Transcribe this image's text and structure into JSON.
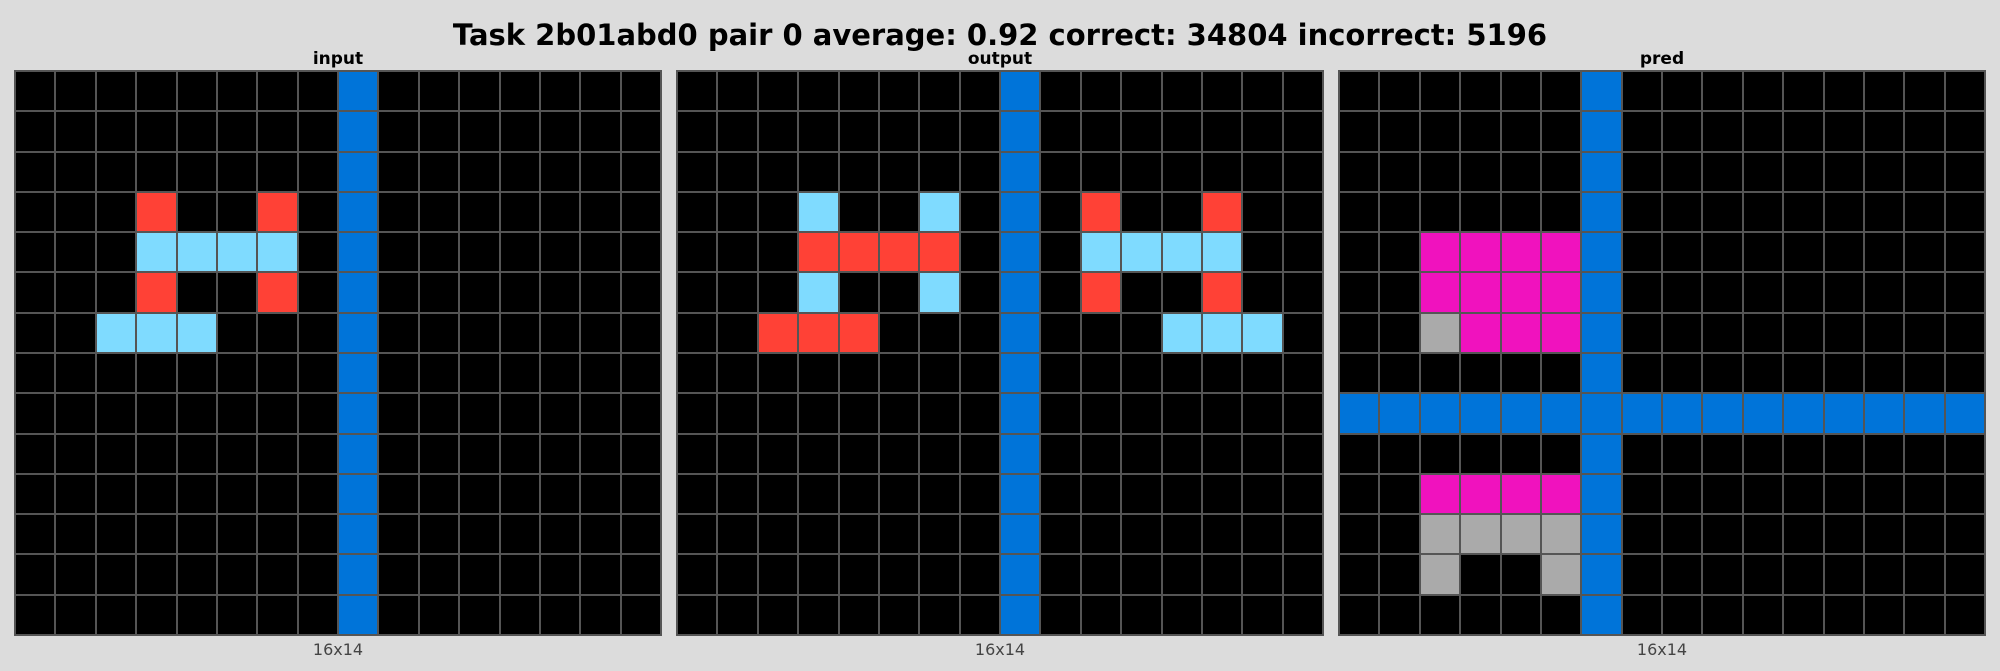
{
  "title": "Task 2b01abd0 pair 0 average: 0.92 correct: 34804 incorrect: 5196",
  "palette": {
    "0": "#000000",
    "1": "#0074d9",
    "2": "#ff4136",
    "5": "#aaaaaa",
    "6": "#f012be",
    "8": "#7fdbff"
  },
  "panels": [
    {
      "id": "input",
      "label": "input",
      "dims": "16x14",
      "rows": [
        [
          0,
          0,
          0,
          0,
          0,
          0,
          0,
          0,
          1,
          0,
          0,
          0,
          0,
          0,
          0,
          0
        ],
        [
          0,
          0,
          0,
          0,
          0,
          0,
          0,
          0,
          1,
          0,
          0,
          0,
          0,
          0,
          0,
          0
        ],
        [
          0,
          0,
          0,
          0,
          0,
          0,
          0,
          0,
          1,
          0,
          0,
          0,
          0,
          0,
          0,
          0
        ],
        [
          0,
          0,
          0,
          2,
          0,
          0,
          2,
          0,
          1,
          0,
          0,
          0,
          0,
          0,
          0,
          0
        ],
        [
          0,
          0,
          0,
          8,
          8,
          8,
          8,
          0,
          1,
          0,
          0,
          0,
          0,
          0,
          0,
          0
        ],
        [
          0,
          0,
          0,
          2,
          0,
          0,
          2,
          0,
          1,
          0,
          0,
          0,
          0,
          0,
          0,
          0
        ],
        [
          0,
          0,
          8,
          8,
          8,
          0,
          0,
          0,
          1,
          0,
          0,
          0,
          0,
          0,
          0,
          0
        ],
        [
          0,
          0,
          0,
          0,
          0,
          0,
          0,
          0,
          1,
          0,
          0,
          0,
          0,
          0,
          0,
          0
        ],
        [
          0,
          0,
          0,
          0,
          0,
          0,
          0,
          0,
          1,
          0,
          0,
          0,
          0,
          0,
          0,
          0
        ],
        [
          0,
          0,
          0,
          0,
          0,
          0,
          0,
          0,
          1,
          0,
          0,
          0,
          0,
          0,
          0,
          0
        ],
        [
          0,
          0,
          0,
          0,
          0,
          0,
          0,
          0,
          1,
          0,
          0,
          0,
          0,
          0,
          0,
          0
        ],
        [
          0,
          0,
          0,
          0,
          0,
          0,
          0,
          0,
          1,
          0,
          0,
          0,
          0,
          0,
          0,
          0
        ],
        [
          0,
          0,
          0,
          0,
          0,
          0,
          0,
          0,
          1,
          0,
          0,
          0,
          0,
          0,
          0,
          0
        ],
        [
          0,
          0,
          0,
          0,
          0,
          0,
          0,
          0,
          1,
          0,
          0,
          0,
          0,
          0,
          0,
          0
        ]
      ]
    },
    {
      "id": "output",
      "label": "output",
      "dims": "16x14",
      "rows": [
        [
          0,
          0,
          0,
          0,
          0,
          0,
          0,
          0,
          1,
          0,
          0,
          0,
          0,
          0,
          0,
          0
        ],
        [
          0,
          0,
          0,
          0,
          0,
          0,
          0,
          0,
          1,
          0,
          0,
          0,
          0,
          0,
          0,
          0
        ],
        [
          0,
          0,
          0,
          0,
          0,
          0,
          0,
          0,
          1,
          0,
          0,
          0,
          0,
          0,
          0,
          0
        ],
        [
          0,
          0,
          0,
          8,
          0,
          0,
          8,
          0,
          1,
          0,
          2,
          0,
          0,
          2,
          0,
          0
        ],
        [
          0,
          0,
          0,
          2,
          2,
          2,
          2,
          0,
          1,
          0,
          8,
          8,
          8,
          8,
          0,
          0
        ],
        [
          0,
          0,
          0,
          8,
          0,
          0,
          8,
          0,
          1,
          0,
          2,
          0,
          0,
          2,
          0,
          0
        ],
        [
          0,
          0,
          2,
          2,
          2,
          0,
          0,
          0,
          1,
          0,
          0,
          0,
          8,
          8,
          8,
          0
        ],
        [
          0,
          0,
          0,
          0,
          0,
          0,
          0,
          0,
          1,
          0,
          0,
          0,
          0,
          0,
          0,
          0
        ],
        [
          0,
          0,
          0,
          0,
          0,
          0,
          0,
          0,
          1,
          0,
          0,
          0,
          0,
          0,
          0,
          0
        ],
        [
          0,
          0,
          0,
          0,
          0,
          0,
          0,
          0,
          1,
          0,
          0,
          0,
          0,
          0,
          0,
          0
        ],
        [
          0,
          0,
          0,
          0,
          0,
          0,
          0,
          0,
          1,
          0,
          0,
          0,
          0,
          0,
          0,
          0
        ],
        [
          0,
          0,
          0,
          0,
          0,
          0,
          0,
          0,
          1,
          0,
          0,
          0,
          0,
          0,
          0,
          0
        ],
        [
          0,
          0,
          0,
          0,
          0,
          0,
          0,
          0,
          1,
          0,
          0,
          0,
          0,
          0,
          0,
          0
        ],
        [
          0,
          0,
          0,
          0,
          0,
          0,
          0,
          0,
          1,
          0,
          0,
          0,
          0,
          0,
          0,
          0
        ]
      ]
    },
    {
      "id": "pred",
      "label": "pred",
      "dims": "16x14",
      "rows": [
        [
          0,
          0,
          0,
          0,
          0,
          0,
          1,
          0,
          0,
          0,
          0,
          0,
          0,
          0,
          0,
          0
        ],
        [
          0,
          0,
          0,
          0,
          0,
          0,
          1,
          0,
          0,
          0,
          0,
          0,
          0,
          0,
          0,
          0
        ],
        [
          0,
          0,
          0,
          0,
          0,
          0,
          1,
          0,
          0,
          0,
          0,
          0,
          0,
          0,
          0,
          0
        ],
        [
          0,
          0,
          0,
          0,
          0,
          0,
          1,
          0,
          0,
          0,
          0,
          0,
          0,
          0,
          0,
          0
        ],
        [
          0,
          0,
          6,
          6,
          6,
          6,
          1,
          0,
          0,
          0,
          0,
          0,
          0,
          0,
          0,
          0
        ],
        [
          0,
          0,
          6,
          6,
          6,
          6,
          1,
          0,
          0,
          0,
          0,
          0,
          0,
          0,
          0,
          0
        ],
        [
          0,
          0,
          5,
          6,
          6,
          6,
          1,
          0,
          0,
          0,
          0,
          0,
          0,
          0,
          0,
          0
        ],
        [
          0,
          0,
          0,
          0,
          0,
          0,
          1,
          0,
          0,
          0,
          0,
          0,
          0,
          0,
          0,
          0
        ],
        [
          1,
          1,
          1,
          1,
          1,
          1,
          1,
          1,
          1,
          1,
          1,
          1,
          1,
          1,
          1,
          1
        ],
        [
          0,
          0,
          0,
          0,
          0,
          0,
          1,
          0,
          0,
          0,
          0,
          0,
          0,
          0,
          0,
          0
        ],
        [
          0,
          0,
          6,
          6,
          6,
          6,
          1,
          0,
          0,
          0,
          0,
          0,
          0,
          0,
          0,
          0
        ],
        [
          0,
          0,
          5,
          5,
          5,
          5,
          1,
          0,
          0,
          0,
          0,
          0,
          0,
          0,
          0,
          0
        ],
        [
          0,
          0,
          5,
          0,
          0,
          5,
          1,
          0,
          0,
          0,
          0,
          0,
          0,
          0,
          0,
          0
        ],
        [
          0,
          0,
          0,
          0,
          0,
          0,
          1,
          0,
          0,
          0,
          0,
          0,
          0,
          0,
          0,
          0
        ]
      ]
    }
  ]
}
